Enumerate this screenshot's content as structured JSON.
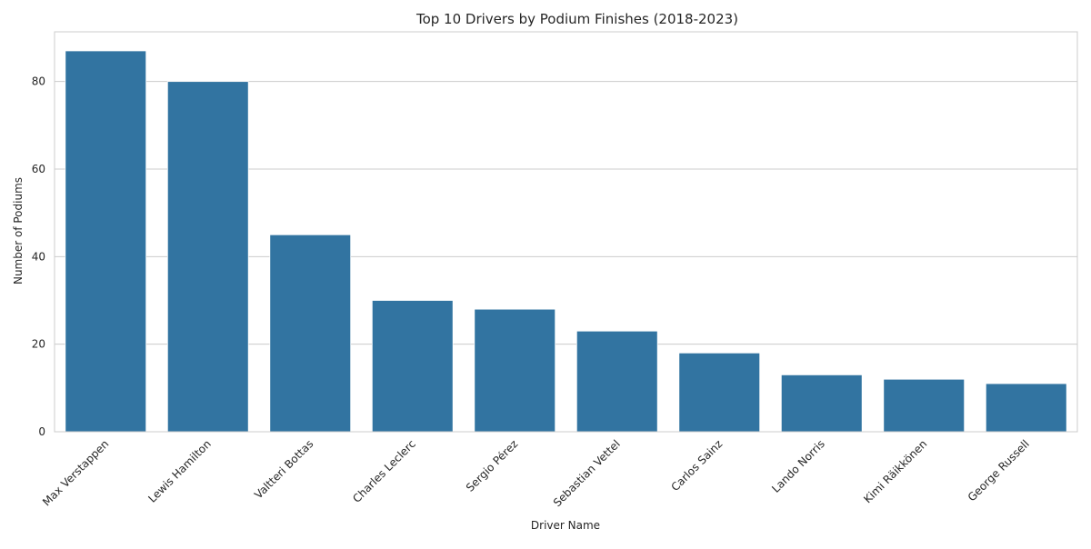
{
  "chart_data": {
    "type": "bar",
    "title": "Top 10 Drivers by Podium Finishes (2018-2023)",
    "xlabel": "Driver Name",
    "ylabel": "Number of Podiums",
    "categories": [
      "Max Verstappen",
      "Lewis Hamilton",
      "Valtteri Bottas",
      "Charles Leclerc",
      "Sergio Pérez",
      "Sebastian Vettel",
      "Carlos Sainz",
      "Lando Norris",
      "Kimi Räikkönen",
      "George Russell"
    ],
    "values": [
      87,
      80,
      45,
      30,
      28,
      23,
      18,
      13,
      12,
      11
    ],
    "ylim": [
      0,
      91.35
    ],
    "yticks": [
      0,
      20,
      40,
      60,
      80
    ],
    "grid": true,
    "bar_color": "#3274a1",
    "grid_color": "#cccccc"
  }
}
